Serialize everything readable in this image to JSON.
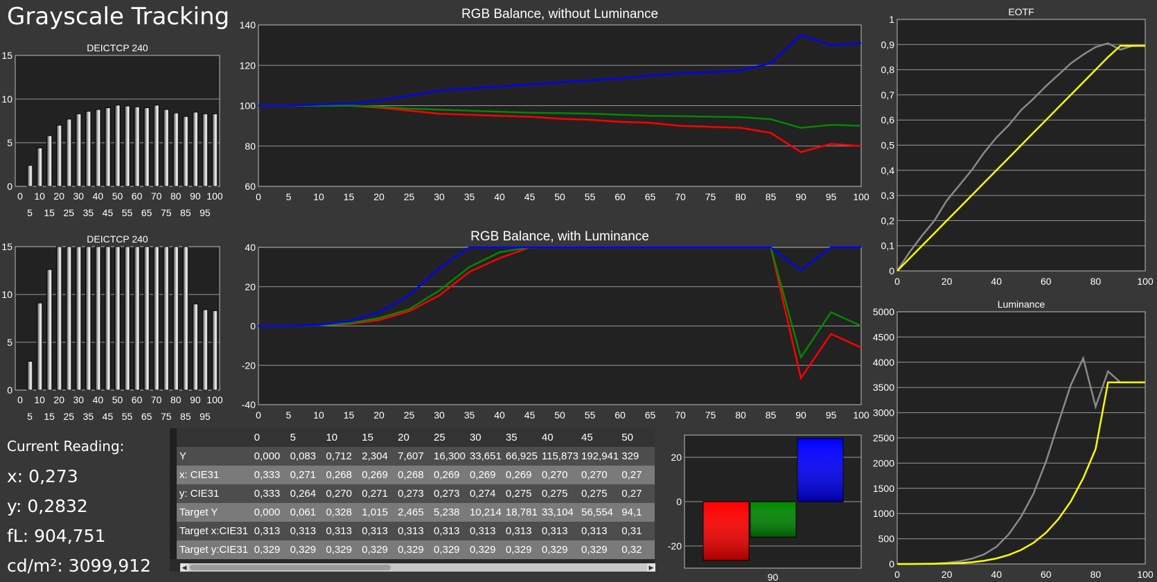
{
  "page_title": "Grayscale Tracking",
  "current_reading": {
    "label": "Current Reading:",
    "lines": [
      "x: 0,273",
      "y: 0,2832",
      "fL: 904,751",
      "cd/m²: 3099,912"
    ]
  },
  "colors": {
    "red": "#ff0000",
    "green": "#008800",
    "blue": "#0000ff",
    "yellow": "#ffff00",
    "gray": "#8a8a8a"
  },
  "chart_data": [
    {
      "id": "deictcp-top",
      "type": "bar",
      "title": "DEICTCP 240",
      "categories": [
        "0",
        "5",
        "10",
        "15",
        "20",
        "25",
        "30",
        "35",
        "40",
        "45",
        "50",
        "55",
        "60",
        "65",
        "70",
        "75",
        "80",
        "85",
        "90",
        "95",
        "100"
      ],
      "values": [
        0,
        2.4,
        4.4,
        5.8,
        7.0,
        7.7,
        8.3,
        8.6,
        8.8,
        9.0,
        9.3,
        9.2,
        9.1,
        9.0,
        9.3,
        8.8,
        8.4,
        8.0,
        8.5,
        8.3,
        8.3
      ],
      "ylim": [
        0,
        15
      ],
      "yticks": [
        "0",
        "5",
        "10",
        "15"
      ],
      "xticks_top": [
        "0",
        "10",
        "20",
        "30",
        "40",
        "50",
        "60",
        "70",
        "80",
        "90",
        "100"
      ],
      "xticks_bottom": [
        "5",
        "15",
        "25",
        "35",
        "45",
        "55",
        "65",
        "75",
        "85",
        "95"
      ]
    },
    {
      "id": "deictcp-bottom",
      "type": "bar",
      "title": "DEICTCP 240",
      "categories": [
        "0",
        "5",
        "10",
        "15",
        "20",
        "25",
        "30",
        "35",
        "40",
        "45",
        "50",
        "55",
        "60",
        "65",
        "70",
        "75",
        "80",
        "85",
        "90",
        "95",
        "100"
      ],
      "values": [
        0,
        3.0,
        9.1,
        12.6,
        15,
        15,
        15,
        15,
        15,
        15,
        15,
        15,
        15,
        15,
        15,
        15,
        15,
        15,
        9.0,
        8.4,
        8.3
      ],
      "ylim": [
        0,
        15
      ],
      "yticks": [
        "0",
        "5",
        "10",
        "15"
      ],
      "xticks_top": [
        "0",
        "10",
        "20",
        "30",
        "40",
        "50",
        "60",
        "70",
        "80",
        "90",
        "100"
      ],
      "xticks_bottom": [
        "5",
        "15",
        "25",
        "35",
        "45",
        "55",
        "65",
        "75",
        "85",
        "95"
      ]
    },
    {
      "id": "rgb-without",
      "type": "line",
      "title": "RGB Balance, without Luminance",
      "x": [
        0,
        5,
        10,
        15,
        20,
        25,
        30,
        35,
        40,
        45,
        50,
        55,
        60,
        65,
        70,
        75,
        80,
        85,
        90,
        95,
        100
      ],
      "xticks": [
        "0",
        "5",
        "10",
        "15",
        "20",
        "25",
        "30",
        "35",
        "40",
        "45",
        "50",
        "55",
        "60",
        "65",
        "70",
        "75",
        "80",
        "85",
        "90",
        "95",
        "100"
      ],
      "ylim": [
        60,
        140
      ],
      "yticks": [
        "60",
        "80",
        "100",
        "120",
        "140"
      ],
      "series": [
        {
          "color_key": "red",
          "values": [
            100,
            100,
            100,
            100,
            99,
            97.5,
            96,
            95.5,
            95,
            94.5,
            93.5,
            93,
            92,
            91.5,
            90,
            89.5,
            89,
            86.5,
            77,
            81,
            80
          ]
        },
        {
          "color_key": "green",
          "values": [
            100,
            100,
            100,
            100,
            99.5,
            98.5,
            98,
            97.5,
            97,
            96.5,
            96.3,
            96,
            95.5,
            95,
            94.8,
            94.5,
            94.3,
            93.3,
            89,
            90.5,
            90
          ]
        },
        {
          "color_key": "blue",
          "values": [
            100,
            100,
            100.5,
            101,
            102.5,
            105,
            107.5,
            108.5,
            109.5,
            110.5,
            111.5,
            112.5,
            113.5,
            115,
            116,
            116.5,
            117.5,
            121,
            135,
            130,
            131
          ]
        }
      ]
    },
    {
      "id": "rgb-with",
      "type": "line",
      "title": "RGB Balance, with Luminance",
      "x": [
        0,
        5,
        10,
        15,
        20,
        25,
        30,
        35,
        40,
        45,
        50,
        55,
        60,
        65,
        70,
        75,
        80,
        85,
        90,
        95,
        100
      ],
      "xticks": [
        "0",
        "5",
        "10",
        "15",
        "20",
        "25",
        "30",
        "35",
        "40",
        "45",
        "50",
        "55",
        "60",
        "65",
        "70",
        "75",
        "80",
        "85",
        "90",
        "95",
        "100"
      ],
      "ylim": [
        -40,
        40
      ],
      "yticks": [
        "-40",
        "-20",
        "0",
        "20",
        "40"
      ],
      "series": [
        {
          "color_key": "red",
          "values": [
            0,
            0,
            0.3,
            1,
            3,
            7.5,
            15.5,
            27.5,
            34.5,
            40,
            40,
            40,
            40,
            40,
            40,
            40,
            40,
            40,
            -26.5,
            -4,
            -11
          ]
        },
        {
          "color_key": "green",
          "values": [
            0,
            0,
            0.3,
            1.3,
            4,
            8.5,
            18,
            30,
            37.5,
            40,
            40,
            40,
            40,
            40,
            40,
            40,
            40,
            40,
            -16,
            7,
            0
          ]
        },
        {
          "color_key": "blue",
          "values": [
            0,
            0,
            0.5,
            2.5,
            7,
            15.5,
            29.5,
            40,
            40,
            40,
            40,
            40,
            40,
            40,
            40,
            40,
            40,
            40,
            28.5,
            40,
            40
          ]
        }
      ]
    },
    {
      "id": "eotf",
      "type": "line",
      "title": "EOTF",
      "x": [
        0,
        5,
        10,
        15,
        20,
        25,
        30,
        35,
        40,
        45,
        50,
        55,
        60,
        65,
        70,
        75,
        80,
        85,
        90,
        95,
        100
      ],
      "xticks": [
        "0",
        "20",
        "40",
        "60",
        "80",
        "100"
      ],
      "ylim": [
        0,
        1
      ],
      "yticks": [
        "0",
        "0,1",
        "0,2",
        "0,3",
        "0,4",
        "0,5",
        "0,6",
        "0,7",
        "0,8",
        "0,9",
        "1"
      ],
      "series": [
        {
          "color_key": "gray",
          "values": [
            0,
            0.075,
            0.14,
            0.2,
            0.28,
            0.34,
            0.4,
            0.47,
            0.53,
            0.58,
            0.64,
            0.685,
            0.735,
            0.78,
            0.825,
            0.86,
            0.89,
            0.905,
            0.88,
            0.895,
            0.895
          ]
        },
        {
          "color_key": "yellow",
          "values": [
            0,
            0.05,
            0.1,
            0.15,
            0.2,
            0.25,
            0.3,
            0.35,
            0.4,
            0.45,
            0.5,
            0.55,
            0.6,
            0.65,
            0.7,
            0.75,
            0.8,
            0.85,
            0.895,
            0.895,
            0.895
          ]
        }
      ]
    },
    {
      "id": "luminance",
      "type": "line",
      "title": "Luminance",
      "x": [
        0,
        5,
        10,
        15,
        20,
        25,
        30,
        35,
        40,
        45,
        50,
        55,
        60,
        65,
        70,
        75,
        80,
        85,
        90,
        95,
        100
      ],
      "xticks": [
        "0",
        "20",
        "40",
        "60",
        "80",
        "100"
      ],
      "ylim": [
        0,
        5000
      ],
      "yticks": [
        "0",
        "500",
        "1000",
        "1500",
        "2000",
        "2500",
        "3000",
        "3500",
        "4000",
        "4500",
        "5000"
      ],
      "series": [
        {
          "color_key": "gray",
          "values": [
            0,
            0.3,
            2.5,
            8,
            23,
            52,
            105,
            190,
            340,
            590,
            940,
            1400,
            2030,
            2800,
            3550,
            4080,
            3120,
            3820,
            3600,
            3600,
            3600
          ]
        },
        {
          "color_key": "yellow",
          "values": [
            0,
            0.2,
            1,
            3,
            8,
            18,
            35,
            63,
            110,
            180,
            280,
            420,
            620,
            890,
            1240,
            1700,
            2280,
            3600,
            3600,
            3600,
            3600
          ]
        }
      ]
    },
    {
      "id": "rgb-90",
      "type": "bar",
      "title": "",
      "categories": [
        "90"
      ],
      "series": [
        {
          "color_key": "red",
          "values": [
            -26.5
          ]
        },
        {
          "color_key": "green",
          "values": [
            -16
          ]
        },
        {
          "color_key": "blue",
          "values": [
            28.5
          ]
        }
      ],
      "ylim": [
        -30,
        30
      ],
      "yticks": [
        "-20",
        "0",
        "20"
      ]
    }
  ],
  "table": {
    "columns": [
      "0",
      "5",
      "10",
      "15",
      "20",
      "25",
      "30",
      "35",
      "40",
      "45",
      "50"
    ],
    "rows": [
      {
        "label": "Y",
        "values": [
          "0,000",
          "0,083",
          "0,712",
          "2,304",
          "7,607",
          "16,300",
          "33,651",
          "66,925",
          "115,873",
          "192,941",
          "329"
        ]
      },
      {
        "label": "x: CIE31",
        "values": [
          "0,333",
          "0,271",
          "0,268",
          "0,269",
          "0,268",
          "0,269",
          "0,269",
          "0,269",
          "0,270",
          "0,270",
          "0,27"
        ]
      },
      {
        "label": "y: CIE31",
        "values": [
          "0,333",
          "0,264",
          "0,270",
          "0,271",
          "0,273",
          "0,273",
          "0,274",
          "0,275",
          "0,275",
          "0,275",
          "0,27"
        ]
      },
      {
        "label": "Target Y",
        "values": [
          "0,000",
          "0,061",
          "0,328",
          "1,015",
          "2,465",
          "5,238",
          "10,214",
          "18,781",
          "33,104",
          "56,554",
          "94,1"
        ]
      },
      {
        "label": "Target x:CIE31",
        "values": [
          "0,313",
          "0,313",
          "0,313",
          "0,313",
          "0,313",
          "0,313",
          "0,313",
          "0,313",
          "0,313",
          "0,313",
          "0,31"
        ]
      },
      {
        "label": "Target y:CIE31",
        "values": [
          "0,329",
          "0,329",
          "0,329",
          "0,329",
          "0,329",
          "0,329",
          "0,329",
          "0,329",
          "0,329",
          "0,329",
          "0,32"
        ]
      }
    ]
  },
  "scroll_left_glyph": "◀",
  "scroll_right_glyph": "▶"
}
